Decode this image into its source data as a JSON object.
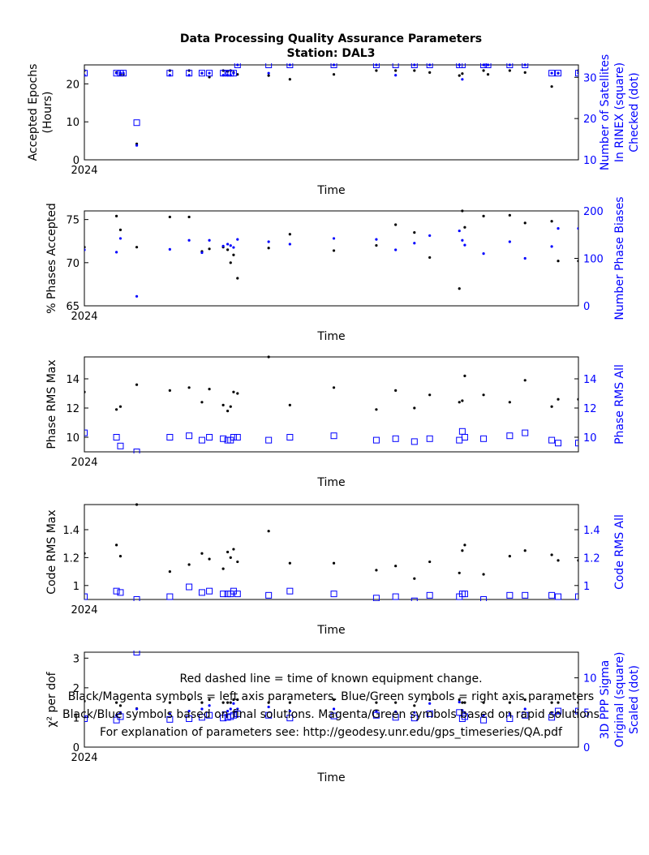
{
  "header": {
    "title": "Data Processing Quality Assurance Parameters",
    "subtitle": "Station: DAL3"
  },
  "colors": {
    "left": "#000000",
    "right": "#0000ff",
    "axis": "#000000"
  },
  "panels": [
    {
      "id": "epochs",
      "left_label_lines": [
        "Accepted Epochs",
        "(Hours)"
      ],
      "right_label_lines": [
        "Number of Satellites",
        "In RINEX (square)",
        "Checked (dot)"
      ],
      "x_label": "Time",
      "x_tick": "2024",
      "left_ticks": [
        "0",
        "10",
        "20"
      ],
      "right_ticks": [
        "10",
        "20",
        "30"
      ]
    },
    {
      "id": "phases",
      "left_label_lines": [
        "% Phases Accepted"
      ],
      "right_label_lines": [
        "Number Phase Biases"
      ],
      "x_label": "Time",
      "x_tick": "2024",
      "left_ticks": [
        "65",
        "70",
        "75"
      ],
      "right_ticks": [
        "0",
        "100",
        "200"
      ]
    },
    {
      "id": "phase_rms",
      "left_label_lines": [
        "Phase RMS Max"
      ],
      "right_label_lines": [
        "Phase RMS All"
      ],
      "x_label": "Time",
      "x_tick": "2024",
      "left_ticks": [
        "10",
        "12",
        "14"
      ],
      "right_ticks": [
        "10",
        "12",
        "14"
      ]
    },
    {
      "id": "code_rms",
      "left_label_lines": [
        "Code RMS Max"
      ],
      "right_label_lines": [
        "Code RMS All"
      ],
      "x_label": "Time",
      "x_tick": "2024",
      "left_ticks": [
        "1",
        "1.2",
        "1.4"
      ],
      "right_ticks": [
        "1",
        "1.2",
        "1.4"
      ]
    },
    {
      "id": "chi2",
      "left_label_lines": [
        "χ² per dof"
      ],
      "right_label_lines": [
        "3D PPP Sigma",
        "Original (square)",
        "Scaled (dot)"
      ],
      "x_label": "Time",
      "x_tick": "2024",
      "left_ticks": [
        "0",
        "1",
        "2",
        "3"
      ],
      "right_ticks": [
        "0",
        "5",
        "10"
      ]
    }
  ],
  "footer": [
    "Red dashed line = time of known equipment change.",
    "Black/Magenta symbols = left axis parameters. Blue/Green symbols = right axis parameters",
    "Black/Blue symbols based on final solutions.  Magenta/Green symbols based on rapid solutions",
    "For explanation of parameters see: http://geodesy.unr.edu/gps_timeseries/QA.pdf"
  ],
  "chart_data": [
    {
      "type": "scatter",
      "xlabel": "Time",
      "ylabel": "Accepted Epochs (Hours)",
      "y2label": "Number of Satellites In RINEX (square) Checked (dot)",
      "xlim": [
        0,
        100
      ],
      "x_tick_positions": [
        0
      ],
      "x_tick_labels": [
        "2024"
      ],
      "ylim": [
        0,
        25
      ],
      "y2lim": [
        10,
        33
      ],
      "yticks": [
        0,
        10,
        20
      ],
      "y2ticks": [
        10,
        20,
        30
      ],
      "series": [
        {
          "name": "Accepted Epochs",
          "axis": "left",
          "marker": "dot",
          "x": [
            0,
            6.5,
            7.3,
            7.9,
            10.6,
            17.3,
            21.2,
            23.8,
            25.3,
            28.1,
            29.0,
            29.6,
            30.2,
            31.0,
            37.3,
            41.6,
            50.5,
            59.1,
            63.0,
            66.8,
            69.9,
            75.9,
            76.5,
            80.8,
            81.7,
            86.1,
            89.2,
            94.6,
            95.9,
            100
          ],
          "y": [
            23.5,
            23,
            22.5,
            22.5,
            4.2,
            23.5,
            23.5,
            22.8,
            21.8,
            23.5,
            23.3,
            23.5,
            23.0,
            22.5,
            22.2,
            21.2,
            22.5,
            23.5,
            23.5,
            23.5,
            23.0,
            22.2,
            22.7,
            23.5,
            22.5,
            23.5,
            23.0,
            19.3,
            22.8,
            23.5
          ]
        },
        {
          "name": "Satellites Checked",
          "axis": "right",
          "marker": "dot",
          "x": [
            0,
            6.5,
            7.3,
            7.9,
            10.6,
            17.3,
            21.2,
            23.8,
            25.3,
            28.1,
            29.0,
            29.6,
            30.2,
            31.0,
            37.3,
            41.6,
            50.5,
            59.1,
            63.0,
            66.8,
            69.9,
            75.9,
            76.5,
            80.8,
            81.7,
            86.1,
            89.2,
            94.6,
            95.9,
            100
          ],
          "y": [
            30.5,
            31,
            31,
            31,
            13.5,
            30.5,
            30.5,
            31,
            31,
            30.5,
            30.5,
            30.5,
            31,
            33,
            31,
            33,
            33,
            33,
            30.5,
            33,
            33,
            33,
            29.5,
            33,
            33,
            33,
            33,
            31,
            31,
            31
          ]
        },
        {
          "name": "Satellites In RINEX",
          "axis": "right",
          "marker": "square",
          "x": [
            0,
            6.5,
            7.3,
            7.9,
            10.6,
            17.3,
            21.2,
            23.8,
            25.3,
            28.1,
            29.0,
            29.6,
            30.2,
            31.0,
            37.3,
            41.6,
            50.5,
            59.1,
            63.0,
            66.8,
            69.9,
            75.9,
            76.5,
            80.8,
            81.7,
            86.1,
            89.2,
            94.6,
            95.9,
            100
          ],
          "y": [
            31,
            31,
            31,
            31,
            19,
            31,
            31,
            31,
            31,
            31,
            31,
            31,
            31,
            33,
            33,
            33,
            33,
            33,
            33,
            33,
            33,
            33,
            33,
            33,
            33,
            33,
            33,
            31,
            31,
            31
          ]
        }
      ]
    },
    {
      "type": "scatter",
      "xlabel": "Time",
      "ylabel": "% Phases Accepted",
      "y2label": "Number Phase Biases",
      "xlim": [
        0,
        100
      ],
      "x_tick_positions": [
        0
      ],
      "x_tick_labels": [
        "2024"
      ],
      "ylim": [
        65,
        76
      ],
      "y2lim": [
        0,
        200
      ],
      "yticks": [
        65,
        70,
        75
      ],
      "y2ticks": [
        0,
        100,
        200
      ],
      "series": [
        {
          "name": "% Phases Accepted",
          "axis": "left",
          "marker": "dot",
          "x": [
            0,
            6.5,
            7.3,
            10.6,
            17.3,
            21.2,
            23.8,
            25.3,
            28.1,
            29.0,
            29.6,
            30.2,
            31.0,
            37.3,
            41.6,
            50.5,
            59.1,
            63.0,
            66.8,
            69.9,
            75.9,
            76.5,
            77.0,
            80.8,
            86.1,
            89.2,
            94.6,
            95.9,
            100
          ],
          "y": [
            71.8,
            75.4,
            73.8,
            71.8,
            75.3,
            75.3,
            71.3,
            71.6,
            71.8,
            71.5,
            70.0,
            70.9,
            68.2,
            71.7,
            73.3,
            71.4,
            72.0,
            74.4,
            73.5,
            70.6,
            67.0,
            76.0,
            74.1,
            75.4,
            75.5,
            74.6,
            74.8,
            70.2,
            70.2
          ]
        },
        {
          "name": "Number Phase Biases",
          "axis": "right",
          "marker": "dot",
          "x": [
            0,
            6.5,
            7.3,
            10.6,
            17.3,
            21.2,
            23.8,
            25.3,
            28.1,
            29.0,
            29.6,
            30.2,
            31.0,
            37.3,
            41.6,
            50.5,
            59.1,
            63.0,
            66.8,
            69.9,
            75.9,
            76.5,
            77.0,
            80.8,
            86.1,
            89.2,
            94.6,
            95.9,
            100
          ],
          "y": [
            118,
            113,
            142,
            20,
            119,
            138,
            112,
            138,
            126,
            130,
            127,
            123,
            140,
            135,
            130,
            142,
            140,
            118,
            132,
            148,
            158,
            138,
            128,
            110,
            135,
            100,
            125,
            163,
            163
          ]
        }
      ]
    },
    {
      "type": "scatter",
      "xlabel": "Time",
      "ylabel": "Phase RMS Max",
      "y2label": "Phase RMS All",
      "xlim": [
        0,
        100
      ],
      "x_tick_positions": [
        0
      ],
      "x_tick_labels": [
        "2024"
      ],
      "ylim": [
        9.0,
        15.5
      ],
      "y2lim": [
        9.0,
        15.5
      ],
      "yticks": [
        10,
        12,
        14
      ],
      "y2ticks": [
        10,
        12,
        14
      ],
      "series": [
        {
          "name": "Phase RMS Max",
          "axis": "left",
          "marker": "dot",
          "x": [
            0,
            6.5,
            7.3,
            10.6,
            17.3,
            21.2,
            23.8,
            25.3,
            28.1,
            29.0,
            29.6,
            30.2,
            31.0,
            37.3,
            41.6,
            50.5,
            59.1,
            63.0,
            66.8,
            69.9,
            75.9,
            76.5,
            77.0,
            80.8,
            86.1,
            89.2,
            94.6,
            95.9,
            100
          ],
          "y": [
            13.1,
            11.9,
            12.1,
            13.6,
            13.2,
            13.4,
            12.4,
            13.3,
            12.2,
            11.8,
            12.1,
            13.1,
            13.0,
            15.5,
            12.2,
            13.4,
            11.9,
            13.2,
            12.0,
            12.9,
            12.4,
            12.5,
            14.2,
            12.9,
            12.4,
            13.9,
            12.1,
            12.6,
            12.6
          ]
        },
        {
          "name": "Phase RMS All",
          "axis": "right",
          "marker": "square",
          "x": [
            0,
            6.5,
            7.3,
            10.6,
            17.3,
            21.2,
            23.8,
            25.3,
            28.1,
            29.0,
            29.6,
            30.2,
            31.0,
            37.3,
            41.6,
            50.5,
            59.1,
            63.0,
            66.8,
            69.9,
            75.9,
            76.5,
            77.0,
            80.8,
            86.1,
            89.2,
            94.6,
            95.9,
            100
          ],
          "y": [
            10.3,
            10.0,
            9.4,
            9.0,
            10.0,
            10.1,
            9.8,
            10.0,
            9.9,
            9.8,
            9.8,
            10.0,
            10.0,
            9.8,
            10.0,
            10.1,
            9.8,
            9.9,
            9.7,
            9.9,
            9.8,
            10.4,
            10.0,
            9.9,
            10.1,
            10.3,
            9.8,
            9.6,
            9.6
          ]
        }
      ]
    },
    {
      "type": "scatter",
      "xlabel": "Time",
      "ylabel": "Code RMS Max",
      "y2label": "Code RMS All",
      "xlim": [
        0,
        100
      ],
      "x_tick_positions": [
        0
      ],
      "x_tick_labels": [
        "2024"
      ],
      "ylim": [
        0.9,
        1.58
      ],
      "y2lim": [
        0.9,
        1.58
      ],
      "yticks": [
        1,
        1.2,
        1.4
      ],
      "y2ticks": [
        1,
        1.2,
        1.4
      ],
      "series": [
        {
          "name": "Code RMS Max",
          "axis": "left",
          "marker": "dot",
          "x": [
            0,
            6.5,
            7.3,
            10.6,
            17.3,
            21.2,
            23.8,
            25.3,
            28.1,
            29.0,
            29.6,
            30.2,
            31.0,
            37.3,
            41.6,
            50.5,
            59.1,
            63.0,
            66.8,
            69.9,
            75.9,
            76.5,
            77.0,
            80.8,
            86.1,
            89.2,
            94.6,
            95.9,
            100
          ],
          "y": [
            1.23,
            1.29,
            1.21,
            1.58,
            1.1,
            1.15,
            1.23,
            1.19,
            1.12,
            1.24,
            1.2,
            1.26,
            1.17,
            1.39,
            1.16,
            1.16,
            1.11,
            1.14,
            1.05,
            1.17,
            1.09,
            1.25,
            1.29,
            1.08,
            1.21,
            1.25,
            1.22,
            1.18,
            1.18
          ]
        },
        {
          "name": "Code RMS All",
          "axis": "right",
          "marker": "square",
          "x": [
            0,
            6.5,
            7.3,
            10.6,
            17.3,
            21.2,
            23.8,
            25.3,
            28.1,
            29.0,
            29.6,
            30.2,
            31.0,
            37.3,
            41.6,
            50.5,
            59.1,
            63.0,
            66.8,
            69.9,
            75.9,
            76.5,
            77.0,
            80.8,
            86.1,
            89.2,
            94.6,
            95.9,
            100
          ],
          "y": [
            0.92,
            0.96,
            0.95,
            0.9,
            0.92,
            0.99,
            0.95,
            0.96,
            0.94,
            0.94,
            0.94,
            0.96,
            0.94,
            0.93,
            0.96,
            0.94,
            0.91,
            0.92,
            0.89,
            0.93,
            0.92,
            0.94,
            0.94,
            0.9,
            0.93,
            0.93,
            0.93,
            0.92,
            0.92
          ]
        }
      ]
    },
    {
      "type": "scatter",
      "xlabel": "Time",
      "ylabel": "χ² per dof",
      "y2label": "3D PPP Sigma Original (square) Scaled (dot)",
      "xlim": [
        0,
        100
      ],
      "x_tick_positions": [
        0
      ],
      "x_tick_labels": [
        "2024"
      ],
      "ylim": [
        0,
        3.2
      ],
      "y2lim": [
        0,
        13.7
      ],
      "yticks": [
        0,
        1,
        2,
        3
      ],
      "y2ticks": [
        0,
        5,
        10
      ],
      "series": [
        {
          "name": "χ² per dof",
          "axis": "left",
          "marker": "dot",
          "x": [
            0,
            6.5,
            7.3,
            10.6,
            17.3,
            21.2,
            23.8,
            25.3,
            28.1,
            29.0,
            29.6,
            30.2,
            31.0,
            37.3,
            41.6,
            50.5,
            59.1,
            63.0,
            66.8,
            69.9,
            75.9,
            76.5,
            77.0,
            80.8,
            86.1,
            89.2,
            94.6,
            95.9,
            100
          ],
          "y": [
            1.55,
            1.5,
            1.4,
            1.3,
            1.5,
            1.6,
            1.5,
            1.6,
            1.5,
            1.5,
            1.5,
            1.6,
            1.6,
            1.5,
            1.5,
            1.6,
            1.5,
            1.5,
            1.4,
            1.6,
            1.6,
            1.5,
            1.5,
            1.5,
            1.5,
            1.6,
            1.5,
            1.5,
            1.5
          ]
        },
        {
          "name": "3D PPP Sigma Scaled",
          "axis": "right",
          "marker": "dot",
          "x": [
            0,
            6.5,
            7.3,
            10.6,
            17.3,
            21.2,
            23.8,
            25.3,
            28.1,
            29.0,
            29.6,
            30.2,
            31.0,
            37.3,
            41.6,
            50.5,
            59.1,
            63.0,
            66.8,
            69.9,
            75.9,
            76.5,
            77.0,
            80.8,
            86.1,
            89.2,
            94.6,
            95.9,
            100
          ],
          "y": [
            4.3,
            4.6,
            5.0,
            5.5,
            4.8,
            5.2,
            5.5,
            6.0,
            5.0,
            5.2,
            5.5,
            6.3,
            5.5,
            5.8,
            5.2,
            5.5,
            5.2,
            5.1,
            5.0,
            6.3,
            6.5,
            5.3,
            5.0,
            4.6,
            4.8,
            5.5,
            5.0,
            5.0,
            5.0
          ]
        },
        {
          "name": "3D PPP Sigma Original",
          "axis": "right",
          "marker": "square",
          "x": [
            0,
            6.5,
            7.3,
            10.6,
            17.3,
            21.2,
            23.8,
            25.3,
            28.1,
            29.0,
            29.6,
            30.2,
            31.0,
            37.3,
            41.6,
            50.5,
            59.1,
            63.0,
            66.8,
            69.9,
            75.9,
            76.5,
            77.0,
            80.8,
            86.1,
            89.2,
            94.6,
            95.9,
            100
          ],
          "y": [
            4.1,
            3.9,
            4.4,
            13.7,
            4.0,
            4.1,
            4.3,
            4.6,
            4.2,
            4.3,
            4.4,
            4.6,
            4.8,
            4.6,
            4.2,
            4.5,
            4.6,
            4.3,
            4.2,
            4.8,
            5.0,
            4.1,
            4.4,
            3.9,
            4.1,
            4.6,
            4.3,
            5.2,
            5.2
          ]
        }
      ]
    }
  ]
}
